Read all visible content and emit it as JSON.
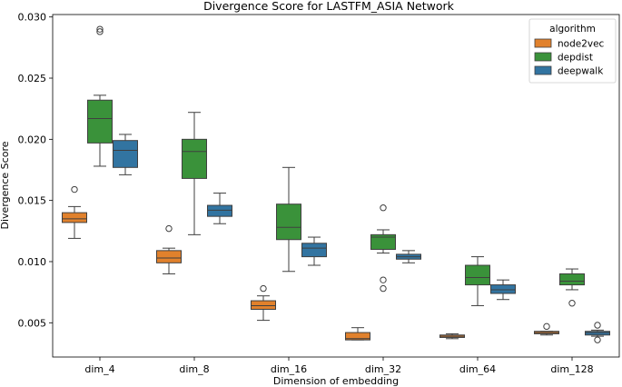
{
  "chart_data": {
    "type": "box",
    "title": "Divergence Score for LASTFM_ASIA Network",
    "xlabel": "Dimension of embedding",
    "ylabel": "Divergence Score",
    "ylim": [
      0.0022,
      0.0302
    ],
    "yticks": [
      "0.005",
      "0.010",
      "0.015",
      "0.020",
      "0.025",
      "0.030"
    ],
    "ytick_values": [
      0.005,
      0.01,
      0.015,
      0.02,
      0.025,
      0.03
    ],
    "categories": [
      "dim_4",
      "dim_8",
      "dim_16",
      "dim_32",
      "dim_64",
      "dim_128"
    ],
    "legend": {
      "title": "algorithm",
      "position": "top-right"
    },
    "series": [
      {
        "name": "node2vec",
        "color": "#e1812c",
        "boxes": [
          {
            "whislo": 0.0119,
            "q1": 0.0132,
            "med": 0.0135,
            "q3": 0.014,
            "whishi": 0.0145,
            "fliers": [
              0.0159
            ]
          },
          {
            "whislo": 0.009,
            "q1": 0.0099,
            "med": 0.0103,
            "q3": 0.0109,
            "whishi": 0.0111,
            "fliers": [
              0.0127
            ]
          },
          {
            "whislo": 0.0052,
            "q1": 0.0061,
            "med": 0.0064,
            "q3": 0.0068,
            "whishi": 0.0072,
            "fliers": [
              0.0078
            ]
          },
          {
            "whislo": 0.0036,
            "q1": 0.0036,
            "med": 0.0037,
            "q3": 0.0042,
            "whishi": 0.0046,
            "fliers": []
          },
          {
            "whislo": 0.0037,
            "q1": 0.0038,
            "med": 0.0039,
            "q3": 0.004,
            "whishi": 0.0041,
            "fliers": []
          },
          {
            "whislo": 0.004,
            "q1": 0.0041,
            "med": 0.0042,
            "q3": 0.0043,
            "whishi": 0.0043,
            "fliers": [
              0.0047
            ]
          }
        ]
      },
      {
        "name": "depdist",
        "color": "#3a923a",
        "boxes": [
          {
            "whislo": 0.0178,
            "q1": 0.0197,
            "med": 0.0217,
            "q3": 0.0232,
            "whishi": 0.0236,
            "fliers": [
              0.0288,
              0.029
            ]
          },
          {
            "whislo": 0.0122,
            "q1": 0.0168,
            "med": 0.019,
            "q3": 0.02,
            "whishi": 0.0222,
            "fliers": []
          },
          {
            "whislo": 0.0092,
            "q1": 0.0118,
            "med": 0.0128,
            "q3": 0.0147,
            "whishi": 0.0177,
            "fliers": []
          },
          {
            "whislo": 0.0107,
            "q1": 0.011,
            "med": 0.012,
            "q3": 0.0122,
            "whishi": 0.0126,
            "fliers": [
              0.0144,
              0.0085,
              0.0078
            ]
          },
          {
            "whislo": 0.0064,
            "q1": 0.0081,
            "med": 0.0087,
            "q3": 0.0097,
            "whishi": 0.0104,
            "fliers": []
          },
          {
            "whislo": 0.0077,
            "q1": 0.0081,
            "med": 0.0084,
            "q3": 0.009,
            "whishi": 0.0094,
            "fliers": [
              0.0066
            ]
          }
        ]
      },
      {
        "name": "deepwalk",
        "color": "#3274a1",
        "boxes": [
          {
            "whislo": 0.0171,
            "q1": 0.0177,
            "med": 0.0191,
            "q3": 0.0199,
            "whishi": 0.0204,
            "fliers": []
          },
          {
            "whislo": 0.0131,
            "q1": 0.0137,
            "med": 0.0142,
            "q3": 0.0146,
            "whishi": 0.0156,
            "fliers": []
          },
          {
            "whislo": 0.0097,
            "q1": 0.0104,
            "med": 0.0111,
            "q3": 0.0115,
            "whishi": 0.012,
            "fliers": []
          },
          {
            "whislo": 0.0099,
            "q1": 0.0102,
            "med": 0.0104,
            "q3": 0.0106,
            "whishi": 0.0109,
            "fliers": []
          },
          {
            "whislo": 0.0069,
            "q1": 0.0074,
            "med": 0.0077,
            "q3": 0.0081,
            "whishi": 0.0085,
            "fliers": []
          },
          {
            "whislo": 0.0039,
            "q1": 0.004,
            "med": 0.0042,
            "q3": 0.0043,
            "whishi": 0.0044,
            "fliers": [
              0.0036,
              0.0048
            ]
          }
        ]
      }
    ]
  }
}
